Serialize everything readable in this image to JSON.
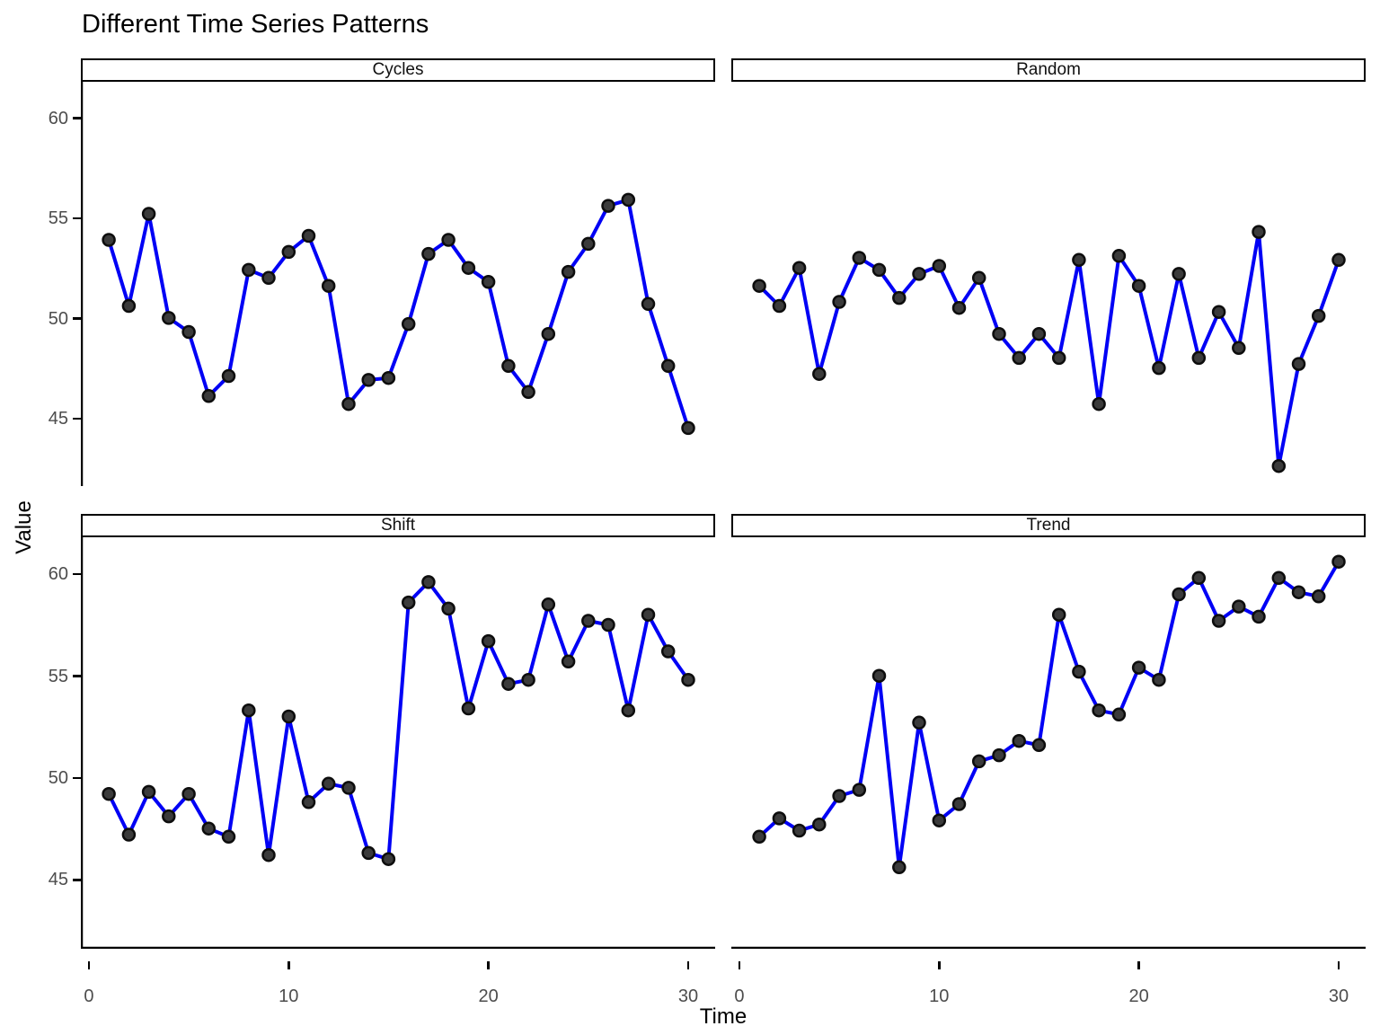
{
  "title": "Different Time Series Patterns",
  "xlabel": "Time",
  "ylabel": "Value",
  "colors": {
    "line": "#0000F5",
    "point_fill": "#3b3b3b",
    "point_stroke": "#0d0d0d",
    "axis_text": "#4d4d4d",
    "axis_line": "#000000",
    "strip_background": "#ffffff",
    "strip_border": "#000000",
    "background": "#ffffff"
  },
  "chart_data": {
    "type": "line",
    "title": "Different Time Series Patterns",
    "xlabel": "Time",
    "ylabel": "Value",
    "x_ticks": [
      0,
      10,
      20,
      30
    ],
    "y_ticks": [
      60,
      55,
      50,
      45
    ],
    "xlim": [
      -0.4,
      31.35
    ],
    "ylim": [
      41.0,
      61.2
    ],
    "grid": false,
    "legend": "none",
    "marker": "filled-circle",
    "facets": [
      {
        "name": "Cycles",
        "x": [
          1,
          2,
          3,
          4,
          5,
          6,
          7,
          8,
          9,
          10,
          11,
          12,
          13,
          14,
          15,
          16,
          17,
          18,
          19,
          20,
          21,
          22,
          23,
          24,
          25,
          26,
          27,
          28,
          29,
          30
        ],
        "values": [
          53.3,
          50.0,
          54.6,
          49.4,
          48.7,
          45.5,
          46.5,
          51.8,
          51.4,
          52.7,
          53.5,
          51.0,
          45.1,
          46.3,
          46.4,
          49.1,
          52.6,
          53.3,
          51.9,
          51.2,
          47.0,
          45.7,
          48.6,
          51.7,
          53.1,
          55.0,
          55.3,
          50.1,
          47.0,
          43.9
        ]
      },
      {
        "name": "Random",
        "x": [
          1,
          2,
          3,
          4,
          5,
          6,
          7,
          8,
          9,
          10,
          11,
          12,
          13,
          14,
          15,
          16,
          17,
          18,
          19,
          20,
          21,
          22,
          23,
          24,
          25,
          26,
          27,
          28,
          29,
          30
        ],
        "values": [
          51.0,
          50.0,
          51.9,
          46.6,
          50.2,
          52.4,
          51.8,
          50.4,
          51.6,
          52.0,
          49.9,
          51.4,
          48.6,
          47.4,
          48.6,
          47.4,
          52.3,
          45.1,
          52.5,
          51.0,
          46.9,
          51.6,
          47.4,
          49.7,
          47.9,
          53.7,
          42.0,
          47.1,
          49.5,
          52.3
        ]
      },
      {
        "name": "Shift",
        "x": [
          1,
          2,
          3,
          4,
          5,
          6,
          7,
          8,
          9,
          10,
          11,
          12,
          13,
          14,
          15,
          16,
          17,
          18,
          19,
          20,
          21,
          22,
          23,
          24,
          25,
          26,
          27,
          28,
          29,
          30
        ],
        "values": [
          48.6,
          46.6,
          48.7,
          47.5,
          48.6,
          46.9,
          46.5,
          52.7,
          45.6,
          52.4,
          48.2,
          49.1,
          48.9,
          45.7,
          45.4,
          58.0,
          59.0,
          57.7,
          52.8,
          56.1,
          54.0,
          54.2,
          57.9,
          55.1,
          57.1,
          56.9,
          52.7,
          57.4,
          55.6,
          54.2
        ]
      },
      {
        "name": "Trend",
        "x": [
          1,
          2,
          3,
          4,
          5,
          6,
          7,
          8,
          9,
          10,
          11,
          12,
          13,
          14,
          15,
          16,
          17,
          18,
          19,
          20,
          21,
          22,
          23,
          24,
          25,
          26,
          27,
          28,
          29,
          30
        ],
        "values": [
          46.5,
          47.4,
          46.8,
          47.1,
          48.5,
          48.8,
          54.4,
          45.0,
          52.1,
          47.3,
          48.1,
          50.2,
          50.5,
          51.2,
          51.0,
          57.4,
          54.6,
          52.7,
          52.5,
          54.8,
          54.2,
          58.4,
          59.2,
          57.1,
          57.8,
          57.3,
          59.2,
          58.5,
          58.3,
          60.0
        ]
      }
    ]
  }
}
